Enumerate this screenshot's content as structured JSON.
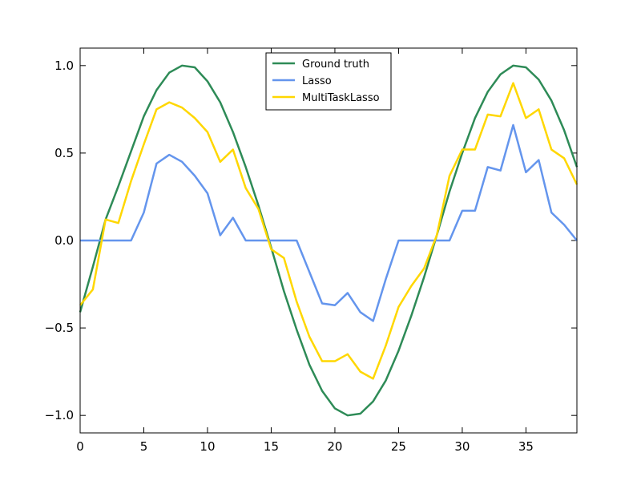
{
  "chart_data": {
    "type": "line",
    "title": "",
    "xlabel": "",
    "ylabel": "",
    "xlim": [
      0,
      39
    ],
    "ylim": [
      -1.1,
      1.1
    ],
    "xticks": [
      0,
      5,
      10,
      15,
      20,
      25,
      30,
      35
    ],
    "xtick_labels": [
      "0",
      "5",
      "10",
      "15",
      "20",
      "25",
      "30",
      "35"
    ],
    "yticks": [
      -1.0,
      -0.5,
      0.0,
      0.5,
      1.0
    ],
    "ytick_labels": [
      "−1.0",
      "−0.5",
      "0.0",
      "0.5",
      "1.0"
    ],
    "grid": false,
    "legend_position": "upper-center",
    "x": [
      0,
      1,
      2,
      3,
      4,
      5,
      6,
      7,
      8,
      9,
      10,
      11,
      12,
      13,
      14,
      15,
      16,
      17,
      18,
      19,
      20,
      21,
      22,
      23,
      24,
      25,
      26,
      27,
      28,
      29,
      30,
      31,
      32,
      33,
      34,
      35,
      36,
      37,
      38,
      39
    ],
    "series": [
      {
        "name": "Ground truth",
        "color": "#2e8b57",
        "values": [
          -0.41,
          -0.15,
          0.12,
          0.31,
          0.51,
          0.71,
          0.86,
          0.96,
          1.0,
          0.99,
          0.91,
          0.79,
          0.62,
          0.42,
          0.2,
          -0.04,
          -0.29,
          -0.51,
          -0.71,
          -0.86,
          -0.96,
          -1.0,
          -0.99,
          -0.92,
          -0.8,
          -0.63,
          -0.43,
          -0.21,
          0.03,
          0.28,
          0.5,
          0.7,
          0.85,
          0.95,
          1.0,
          0.99,
          0.92,
          0.8,
          0.63,
          0.42
        ]
      },
      {
        "name": "Lasso",
        "color": "#6495ed",
        "values": [
          0.0,
          0.0,
          0.0,
          0.0,
          0.0,
          0.16,
          0.44,
          0.49,
          0.45,
          0.37,
          0.27,
          0.03,
          0.13,
          0.0,
          0.0,
          0.0,
          0.0,
          0.0,
          -0.18,
          -0.36,
          -0.37,
          -0.3,
          -0.41,
          -0.46,
          -0.22,
          0.0,
          0.0,
          0.0,
          0.0,
          0.0,
          0.17,
          0.17,
          0.42,
          0.4,
          0.66,
          0.39,
          0.46,
          0.16,
          0.09,
          0.0
        ]
      },
      {
        "name": "MultiTaskLasso",
        "color": "#ffd700",
        "values": [
          -0.37,
          -0.28,
          0.12,
          0.1,
          0.34,
          0.55,
          0.75,
          0.79,
          0.76,
          0.7,
          0.62,
          0.45,
          0.52,
          0.3,
          0.18,
          -0.05,
          -0.1,
          -0.35,
          -0.55,
          -0.69,
          -0.69,
          -0.65,
          -0.75,
          -0.79,
          -0.6,
          -0.38,
          -0.26,
          -0.16,
          0.03,
          0.37,
          0.52,
          0.52,
          0.72,
          0.71,
          0.9,
          0.7,
          0.75,
          0.52,
          0.47,
          0.32
        ]
      }
    ]
  }
}
